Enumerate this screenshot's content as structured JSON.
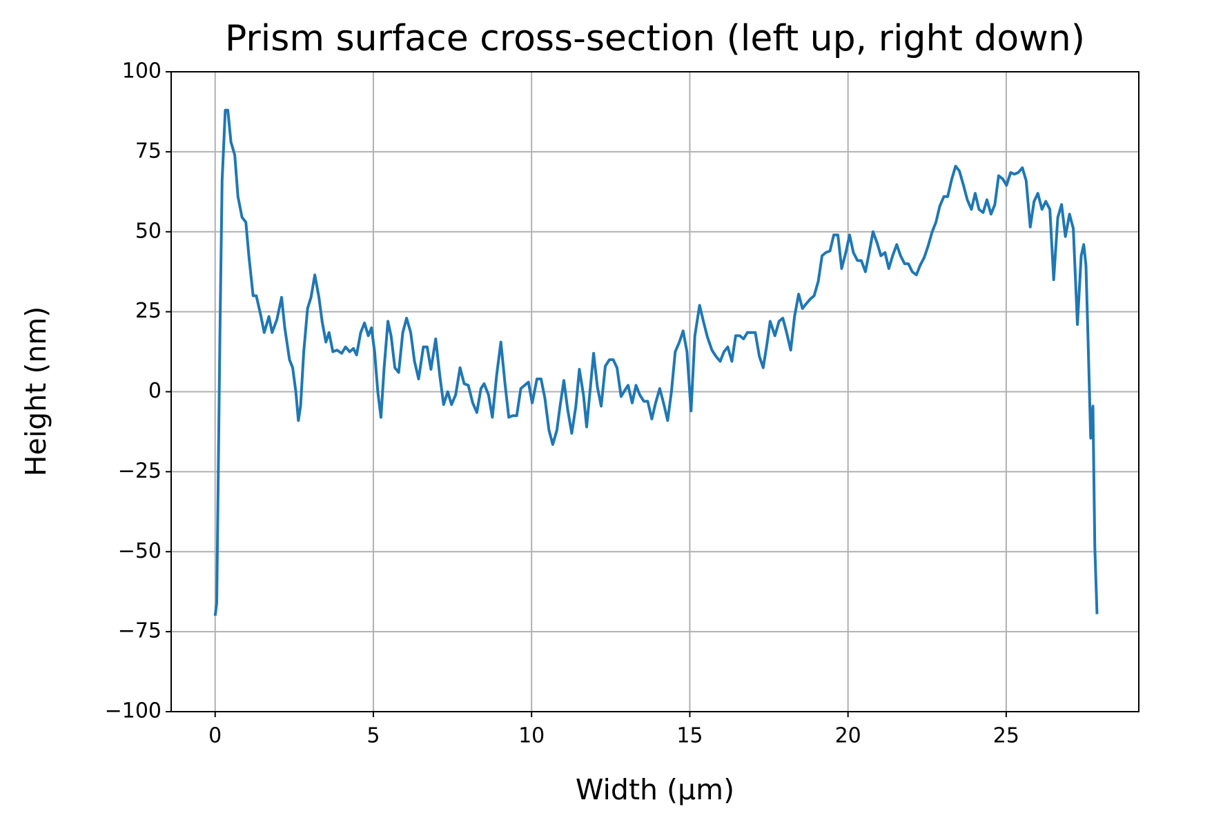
{
  "chart_data": {
    "type": "line",
    "title": "Prism surface cross-section (left up, right down)",
    "xlabel": "Width (µm)",
    "ylabel": "Height (nm)",
    "color": "#1f77b4",
    "grid": true,
    "xlim": [
      -1.39,
      29.19
    ],
    "ylim": [
      -100,
      100
    ],
    "xticks": [
      0,
      5,
      10,
      15,
      20,
      25
    ],
    "yticks": [
      {
        "value": -100,
        "label": "−100"
      },
      {
        "value": -75,
        "label": "−75"
      },
      {
        "value": -50,
        "label": "−50"
      },
      {
        "value": -25,
        "label": "−25"
      },
      0,
      25,
      50,
      75,
      100
    ],
    "x": [
      0,
      0.05,
      0.15,
      0.22,
      0.32,
      0.4,
      0.5,
      0.62,
      0.72,
      0.85,
      0.97,
      1.07,
      1.2,
      1.3,
      1.45,
      1.55,
      1.7,
      1.8,
      1.95,
      2.1,
      2.2,
      2.35,
      2.45,
      2.55,
      2.63,
      2.7,
      2.8,
      2.92,
      3.03,
      3.15,
      3.28,
      3.38,
      3.5,
      3.6,
      3.72,
      3.85,
      4.0,
      4.12,
      4.25,
      4.37,
      4.47,
      4.6,
      4.72,
      4.84,
      4.94,
      5.04,
      5.14,
      5.24,
      5.34,
      5.46,
      5.56,
      5.68,
      5.8,
      5.93,
      6.05,
      6.18,
      6.3,
      6.43,
      6.58,
      6.7,
      6.82,
      6.97,
      7.1,
      7.22,
      7.35,
      7.47,
      7.6,
      7.74,
      7.87,
      8.0,
      8.14,
      8.27,
      8.4,
      8.5,
      8.64,
      8.76,
      8.9,
      9.03,
      9.16,
      9.28,
      9.4,
      9.53,
      9.66,
      9.78,
      9.9,
      10.02,
      10.17,
      10.3,
      10.42,
      10.55,
      10.67,
      10.8,
      10.9,
      11.02,
      11.14,
      11.27,
      11.4,
      11.51,
      11.64,
      11.74,
      11.86,
      11.96,
      12.08,
      12.2,
      12.33,
      12.46,
      12.58,
      12.7,
      12.83,
      12.95,
      13.05,
      13.18,
      13.3,
      13.42,
      13.55,
      13.67,
      13.8,
      13.92,
      14.05,
      14.17,
      14.3,
      14.42,
      14.54,
      14.67,
      14.79,
      14.91,
      15.04,
      15.16,
      15.31,
      15.43,
      15.56,
      15.7,
      15.83,
      15.96,
      16.08,
      16.2,
      16.33,
      16.45,
      16.58,
      16.7,
      16.82,
      16.95,
      17.07,
      17.2,
      17.32,
      17.44,
      17.54,
      17.69,
      17.82,
      17.94,
      18.06,
      18.19,
      18.31,
      18.44,
      18.56,
      18.68,
      18.81,
      18.93,
      19.06,
      19.18,
      19.3,
      19.43,
      19.55,
      19.68,
      19.8,
      19.93,
      20.05,
      20.17,
      20.3,
      20.42,
      20.55,
      20.67,
      20.79,
      20.92,
      21.04,
      21.17,
      21.29,
      21.41,
      21.54,
      21.66,
      21.79,
      21.91,
      22.03,
      22.16,
      22.28,
      22.41,
      22.53,
      22.66,
      22.78,
      22.9,
      23.03,
      23.15,
      23.28,
      23.4,
      23.52,
      23.65,
      23.77,
      23.9,
      24.02,
      24.14,
      24.27,
      24.39,
      24.52,
      24.64,
      24.76,
      24.89,
      25.01,
      25.14,
      25.26,
      25.38,
      25.51,
      25.63,
      25.76,
      25.88,
      26.0,
      26.13,
      26.25,
      26.38,
      26.5,
      26.63,
      26.75,
      26.87,
      27.0,
      27.12,
      27.25,
      27.37,
      27.45,
      27.52,
      27.59,
      27.67,
      27.74,
      27.8,
      27.87
    ],
    "values": [
      -70,
      -66,
      17,
      66,
      88,
      88,
      78,
      74,
      61,
      54.5,
      53,
      42,
      30,
      30,
      23.5,
      18.5,
      23.5,
      18.5,
      22.5,
      29.5,
      20,
      10,
      7.5,
      0,
      -9,
      -4.5,
      12.5,
      26,
      29.5,
      36.5,
      29.5,
      22,
      15.5,
      18.5,
      12.5,
      13,
      12,
      14,
      12.5,
      13.5,
      11.5,
      18.5,
      21.5,
      17.5,
      20,
      12.5,
      0,
      -8,
      7.5,
      22,
      17.5,
      7.5,
      6,
      18.5,
      23,
      18.5,
      9.5,
      4,
      14,
      14,
      7,
      16.5,
      5,
      -4,
      0,
      -4,
      -1,
      7.5,
      2.5,
      2,
      -3.5,
      -6.5,
      1,
      2.5,
      -1,
      -8,
      5.5,
      15.5,
      2.5,
      -8,
      -7.5,
      -7.5,
      1,
      2,
      3,
      -3.5,
      4,
      4,
      -2,
      -12,
      -16.5,
      -12,
      -4.5,
      3.5,
      -5.5,
      -13,
      -4.5,
      7,
      -1,
      -11,
      1.5,
      12,
      1.5,
      -4.5,
      8,
      10,
      10,
      7.5,
      -1.5,
      0.5,
      2,
      -3.5,
      2,
      -1,
      -3,
      -3,
      -8.5,
      -3.5,
      1,
      -3.5,
      -9,
      0,
      12.5,
      15.5,
      19,
      12.5,
      -6,
      17.5,
      27,
      22,
      17,
      13,
      11,
      9.5,
      12.5,
      14,
      9.5,
      17.5,
      17.5,
      16.5,
      18.5,
      18.5,
      18.5,
      11,
      7.5,
      15,
      22,
      17.5,
      22,
      23,
      18.5,
      13,
      23.5,
      30.5,
      26,
      27.5,
      29,
      30,
      34.5,
      42.5,
      43.5,
      44,
      49,
      49,
      38.5,
      43.5,
      49,
      43.5,
      41,
      41,
      37.5,
      43.5,
      50,
      46.5,
      42.5,
      43.5,
      38.5,
      42.5,
      46,
      42.5,
      40,
      40,
      37.5,
      36.5,
      39.5,
      42,
      45.5,
      50,
      53,
      58,
      61,
      61,
      66.5,
      70.5,
      69,
      64.5,
      60,
      57,
      62,
      57,
      56,
      60,
      55.5,
      58.5,
      67.5,
      66.5,
      64.5,
      68.5,
      68,
      68.5,
      70,
      66,
      51.5,
      59.5,
      62,
      57,
      59.5,
      57,
      35,
      54.5,
      58.5,
      48.5,
      55.5,
      51,
      21,
      42.5,
      46,
      39.5,
      15,
      -14.5,
      -4.5,
      -48.5,
      -69.5
    ]
  }
}
